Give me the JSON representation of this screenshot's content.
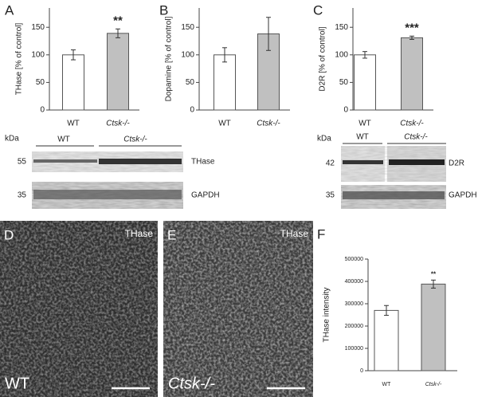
{
  "chart_data": [
    {
      "type": "bar",
      "panel": "A",
      "ylabel": "THase [% of control]",
      "categories": [
        "WT",
        "Ctsk-/-"
      ],
      "values": [
        100,
        139
      ],
      "errors": [
        9,
        8
      ],
      "colors": [
        "#ffffff",
        "#c0c0c0"
      ],
      "annotation": "**",
      "ylim": [
        0,
        185
      ],
      "yticks": [
        0,
        50,
        100,
        150
      ]
    },
    {
      "type": "bar",
      "panel": "B",
      "ylabel": "Dopamine [% of control]",
      "categories": [
        "WT",
        "Ctsk-/-"
      ],
      "values": [
        100,
        138
      ],
      "errors": [
        13,
        30
      ],
      "colors": [
        "#ffffff",
        "#c0c0c0"
      ],
      "ylim": [
        0,
        185
      ],
      "yticks": [
        0,
        50,
        100,
        150
      ]
    },
    {
      "type": "bar",
      "panel": "C",
      "ylabel": "D2R [% of control]",
      "categories": [
        "WT",
        "Ctsk-/-"
      ],
      "values": [
        100,
        131
      ],
      "errors": [
        6,
        3
      ],
      "colors": [
        "#ffffff",
        "#c0c0c0"
      ],
      "annotation": "***",
      "ylim": [
        0,
        185
      ],
      "yticks": [
        0,
        50,
        100,
        150
      ]
    },
    {
      "type": "bar",
      "panel": "F",
      "ylabel": "THase intensity",
      "categories": [
        "WT",
        "Ctsk-/-"
      ],
      "values": [
        270000,
        388000
      ],
      "errors": [
        22000,
        18000
      ],
      "colors": [
        "#ffffff",
        "#c0c0c0"
      ],
      "annotation": "**",
      "ylim": [
        0,
        500000
      ],
      "yticks": [
        0,
        100000,
        200000,
        300000,
        400000,
        500000
      ]
    }
  ],
  "blots": [
    {
      "unit": "kDa",
      "groups": [
        "WT",
        "Ctsk-/-"
      ],
      "bands": [
        {
          "marker": "55",
          "label": "THase"
        },
        {
          "marker": "35",
          "label": "GAPDH"
        }
      ]
    },
    {
      "unit": "kDa",
      "groups": [
        "WT",
        "Ctsk-/-"
      ],
      "bands": [
        {
          "marker": "42",
          "label": "D2R"
        },
        {
          "marker": "35",
          "label": "GAPDH"
        }
      ]
    }
  ],
  "images": [
    {
      "panel": "D",
      "stain": "THase",
      "genotype": "WT"
    },
    {
      "panel": "E",
      "stain": "THase",
      "genotype": "Ctsk-/-"
    }
  ]
}
